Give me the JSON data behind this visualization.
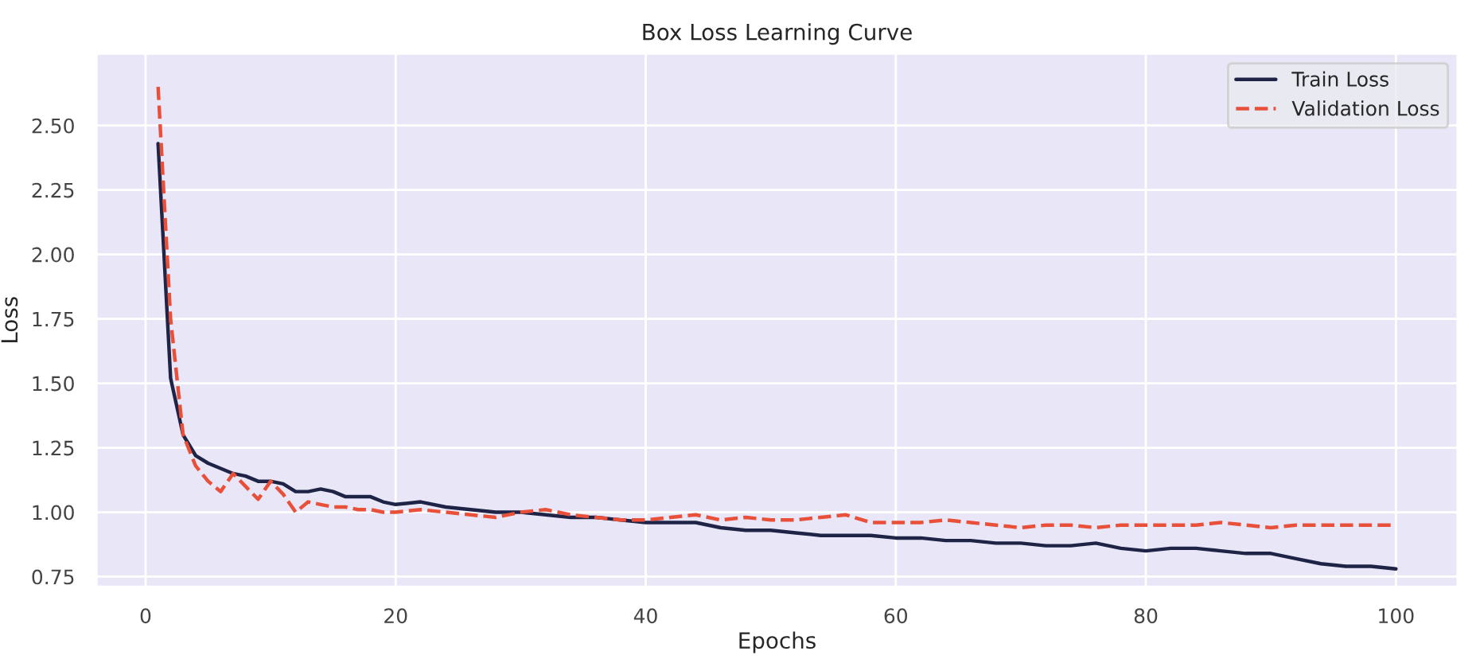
{
  "chart_data": {
    "type": "line",
    "title": "Box Loss Learning Curve",
    "xlabel": "Epochs",
    "ylabel": "Loss",
    "x": [
      1,
      2,
      3,
      4,
      5,
      6,
      7,
      8,
      9,
      10,
      11,
      12,
      13,
      14,
      15,
      16,
      17,
      18,
      19,
      20,
      22,
      24,
      26,
      28,
      30,
      32,
      34,
      36,
      38,
      40,
      42,
      44,
      46,
      48,
      50,
      52,
      54,
      56,
      58,
      60,
      62,
      64,
      66,
      68,
      70,
      72,
      74,
      76,
      78,
      80,
      82,
      84,
      86,
      88,
      90,
      92,
      94,
      96,
      98,
      100
    ],
    "series": [
      {
        "name": "Train Loss",
        "color": "#1f2447",
        "line_style": "solid",
        "values": [
          2.43,
          1.52,
          1.3,
          1.22,
          1.19,
          1.17,
          1.15,
          1.14,
          1.12,
          1.12,
          1.11,
          1.08,
          1.08,
          1.09,
          1.08,
          1.06,
          1.06,
          1.06,
          1.04,
          1.03,
          1.04,
          1.02,
          1.01,
          1.0,
          1.0,
          0.99,
          0.98,
          0.98,
          0.97,
          0.96,
          0.96,
          0.96,
          0.94,
          0.93,
          0.93,
          0.92,
          0.91,
          0.91,
          0.91,
          0.9,
          0.9,
          0.89,
          0.89,
          0.88,
          0.88,
          0.87,
          0.87,
          0.88,
          0.86,
          0.85,
          0.86,
          0.86,
          0.85,
          0.84,
          0.84,
          0.82,
          0.8,
          0.79,
          0.79,
          0.78
        ]
      },
      {
        "name": "Validation Loss",
        "color": "#e8503a",
        "line_style": "dashed",
        "values": [
          2.65,
          1.75,
          1.3,
          1.18,
          1.12,
          1.08,
          1.15,
          1.1,
          1.05,
          1.12,
          1.07,
          1.0,
          1.04,
          1.03,
          1.02,
          1.02,
          1.01,
          1.01,
          1.0,
          1.0,
          1.01,
          1.0,
          0.99,
          0.98,
          1.0,
          1.01,
          0.99,
          0.98,
          0.97,
          0.97,
          0.98,
          0.99,
          0.97,
          0.98,
          0.97,
          0.97,
          0.98,
          0.99,
          0.96,
          0.96,
          0.96,
          0.97,
          0.96,
          0.95,
          0.94,
          0.95,
          0.95,
          0.94,
          0.95,
          0.95,
          0.95,
          0.95,
          0.96,
          0.95,
          0.94,
          0.95,
          0.95,
          0.95,
          0.95,
          0.95
        ]
      }
    ],
    "xlim": [
      -3.95,
      104.95
    ],
    "ylim": [
      0.71,
      2.78
    ],
    "xticks": [
      0,
      20,
      40,
      60,
      80,
      100
    ],
    "yticks": [
      {
        "value": 0.75,
        "label": "0.75"
      },
      {
        "value": 1.0,
        "label": "1.00"
      },
      {
        "value": 1.25,
        "label": "1.25"
      },
      {
        "value": 1.5,
        "label": "1.50"
      },
      {
        "value": 1.75,
        "label": "1.75"
      },
      {
        "value": 2.0,
        "label": "2.00"
      },
      {
        "value": 2.25,
        "label": "2.25"
      },
      {
        "value": 2.5,
        "label": "2.50"
      }
    ],
    "grid": true,
    "legend": "top right"
  }
}
